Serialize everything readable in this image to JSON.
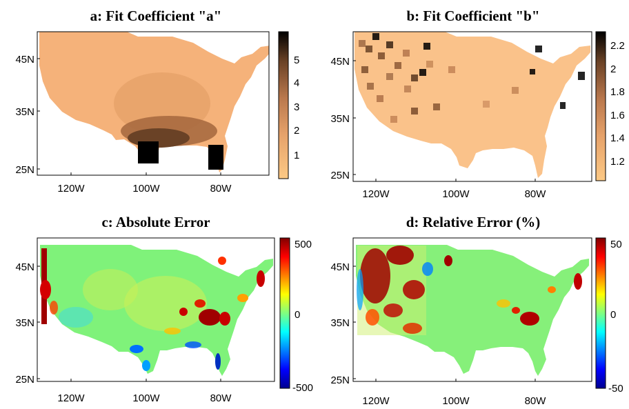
{
  "chart_data": [
    {
      "type": "heatmap",
      "title": "a: Fit Coefficient \"a\"",
      "xticks": [
        "120W",
        "100W",
        "80W"
      ],
      "yticks": [
        "45N",
        "35N",
        "25N"
      ],
      "xlim": [
        -127,
        -65
      ],
      "ylim": [
        24,
        50
      ],
      "colorbar": {
        "ticks": [
          "5",
          "4",
          "3",
          "2",
          "1"
        ],
        "range": [
          0.1,
          6.0
        ],
        "colormap": "copper_reversed"
      },
      "regions": [
        {
          "area": "west and northern plains",
          "value": 1.3
        },
        {
          "area": "great lakes and northeast",
          "value": 1.5
        },
        {
          "area": "central plains",
          "value": 2.2
        },
        {
          "area": "southern plains / texas",
          "value": 3.6
        },
        {
          "area": "south texas tip",
          "value": 6.0
        },
        {
          "area": "south florida",
          "value": 6.0
        }
      ],
      "colors": {
        "low": "#fbc584",
        "high": "#000000"
      }
    },
    {
      "type": "heatmap",
      "title": "b: Fit Coefficient \"b\"",
      "xticks": [
        "120W",
        "100W",
        "80W"
      ],
      "yticks": [
        "45N",
        "35N",
        "25N"
      ],
      "xlim": [
        -127,
        -65
      ],
      "ylim": [
        24,
        50
      ],
      "colorbar": {
        "ticks": [
          "2.2",
          "2",
          "1.8",
          "1.6",
          "1.4",
          "1.2"
        ],
        "range": [
          1.0,
          2.3
        ],
        "colormap": "copper_reversed"
      },
      "regions": [
        {
          "area": "background",
          "value": 1.05
        },
        {
          "area": "northwest / rockies (scattered)",
          "value": 1.9
        },
        {
          "area": "scattered isolated cells",
          "value": 2.2
        }
      ],
      "colors": {
        "low": "#fbc584",
        "high": "#000000"
      }
    },
    {
      "type": "heatmap",
      "title": "c: Absolute Error",
      "xticks": [
        "120W",
        "100W",
        "80W"
      ],
      "yticks": [
        "45N",
        "35N",
        "25N"
      ],
      "xlim": [
        -127,
        -65
      ],
      "ylim": [
        24,
        50
      ],
      "colorbar": {
        "ticks": [
          "500",
          "0",
          "-500"
        ],
        "range": [
          -500,
          500
        ],
        "colormap": "jet"
      },
      "regions": [
        {
          "area": "background",
          "value": 0
        },
        {
          "area": "pacific coast",
          "value": 450
        },
        {
          "area": "lower mississippi valley",
          "value": 500
        },
        {
          "area": "gulf coast",
          "value": -400
        },
        {
          "area": "northeast coast",
          "value": 500
        }
      ]
    },
    {
      "type": "heatmap",
      "title": "d: Relative Error (%)",
      "xticks": [
        "120W",
        "100W",
        "80W"
      ],
      "yticks": [
        "45N",
        "35N",
        "25N"
      ],
      "xlim": [
        -127,
        -65
      ],
      "ylim": [
        24,
        50
      ],
      "colorbar": {
        "ticks": [
          "50",
          "0",
          "-50"
        ],
        "range": [
          -50,
          50
        ],
        "colormap": "jet"
      },
      "regions": [
        {
          "area": "background",
          "value": 0
        },
        {
          "area": "intermountain west",
          "value": 45
        },
        {
          "area": "lower mississippi valley",
          "value": 40
        },
        {
          "area": "northeast coast",
          "value": 45
        }
      ]
    }
  ]
}
